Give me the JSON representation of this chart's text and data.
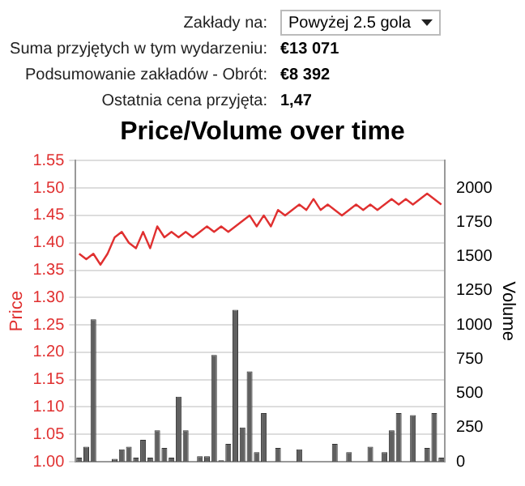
{
  "chart_data": {
    "type": "line",
    "title": "Price/Volume over time",
    "ylabel": "Price",
    "y2label": "Volume",
    "annotations": [
      "Zakłady na:",
      "Powyżej 2.5 gola",
      "Suma przyjętych w tym wydarzeniu:",
      "€13 071",
      "Podsumowanie zakładów - Obrót:",
      "€8 392",
      "Ostatnia cena przyjęta:",
      "1,47"
    ],
    "categories": [
      null,
      null,
      null,
      null,
      null,
      null,
      null,
      null,
      null,
      null,
      null,
      null,
      null,
      null,
      null,
      null,
      null,
      null,
      null,
      null,
      null,
      null,
      null,
      null,
      null,
      null,
      null,
      null,
      null,
      null,
      null,
      null,
      null,
      null,
      null,
      null,
      null,
      null,
      null,
      null,
      null,
      null,
      null,
      null,
      null,
      null,
      null,
      null,
      null,
      null,
      null,
      null
    ],
    "series": [
      {
        "color": "#e03030",
        "values": [
          1.38,
          1.37,
          1.38,
          1.36,
          1.38,
          1.41,
          1.42,
          1.4,
          1.39,
          1.42,
          1.39,
          1.43,
          1.41,
          1.42,
          1.41,
          1.42,
          1.41,
          1.42,
          1.43,
          1.42,
          1.43,
          1.42,
          1.43,
          1.44,
          1.45,
          1.43,
          1.45,
          1.43,
          1.46,
          1.45,
          1.46,
          1.47,
          1.46,
          1.48,
          1.46,
          1.47,
          1.46,
          1.45,
          1.46,
          1.47,
          1.46,
          1.47,
          1.46,
          1.47,
          1.48,
          1.47,
          1.48,
          1.47,
          1.48,
          1.49,
          1.48,
          1.47
        ]
      },
      {
        "type": "bar",
        "axis": "y2",
        "color": "#606060",
        "values": [
          30,
          110,
          1040,
          null,
          null,
          20,
          90,
          110,
          30,
          160,
          30,
          230,
          100,
          30,
          475,
          230,
          null,
          40,
          40,
          780,
          10,
          130,
          1110,
          250,
          660,
          70,
          355,
          null,
          100,
          null,
          null,
          90,
          null,
          null,
          null,
          null,
          130,
          null,
          70,
          null,
          null,
          110,
          null,
          70,
          230,
          355,
          null,
          340,
          null,
          100,
          355,
          30
        ]
      }
    ],
    "ylim": [
      1.0,
      1.55
    ],
    "yticks": [
      {
        "value": 1.0,
        "label": "1.00"
      },
      {
        "value": 1.05,
        "label": "1.05"
      },
      {
        "value": 1.1,
        "label": "1.10"
      },
      {
        "value": 1.15,
        "label": "1.15"
      },
      {
        "value": 1.2,
        "label": "1.20"
      },
      {
        "value": 1.25,
        "label": "1.25"
      },
      {
        "value": 1.3,
        "label": "1.30"
      },
      {
        "value": 1.35,
        "label": "1.35"
      },
      {
        "value": 1.4,
        "label": "1.40"
      },
      {
        "value": 1.45,
        "label": "1.45"
      },
      {
        "value": 1.5,
        "label": "1.50"
      },
      {
        "value": 1.55,
        "label": "1.55"
      }
    ],
    "y2lim": [
      0,
      2200
    ],
    "y2ticks": [
      0,
      250,
      500,
      750,
      1000,
      1250,
      1500,
      1750,
      2000
    ],
    "grid": "y",
    "tick_labels": "y"
  }
}
